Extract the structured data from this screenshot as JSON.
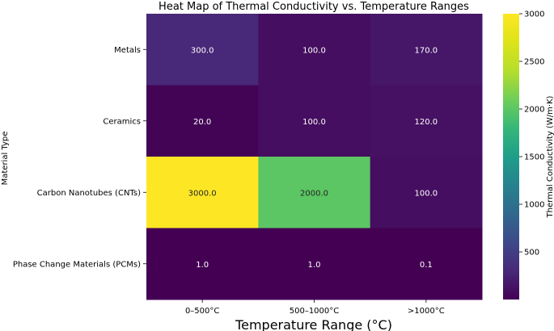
{
  "chart_data": {
    "type": "heatmap",
    "title": "Heat Map of Thermal Conductivity vs. Temperature Ranges",
    "xlabel": "Temperature Range (°C)",
    "ylabel": "Material Type",
    "x_categories": [
      "0–500°C",
      "500–1000°C",
      ">1000°C"
    ],
    "y_categories": [
      "Metals",
      "Ceramics",
      "Carbon Nanotubes (CNTs)",
      "Phase Change Materials (PCMs)"
    ],
    "values": [
      [
        300.0,
        100.0,
        170.0
      ],
      [
        20.0,
        100.0,
        120.0
      ],
      [
        3000.0,
        2000.0,
        100.0
      ],
      [
        1.0,
        1.0,
        0.1
      ]
    ],
    "value_labels": [
      [
        "300.0",
        "100.0",
        "170.0"
      ],
      [
        "20.0",
        "100.0",
        "120.0"
      ],
      [
        "3000.0",
        "2000.0",
        "100.0"
      ],
      [
        "1.0",
        "1.0",
        "0.1"
      ]
    ],
    "colorbar": {
      "label": "Thermal Conductivity (W/m·K)",
      "colormap": "viridis",
      "range": [
        0.1,
        3000
      ],
      "ticks": [
        500,
        1000,
        1500,
        2000,
        2500,
        3000
      ],
      "tick_labels": [
        "500",
        "1000",
        "1500",
        "2000",
        "2500",
        "3000"
      ]
    },
    "grid": false
  }
}
